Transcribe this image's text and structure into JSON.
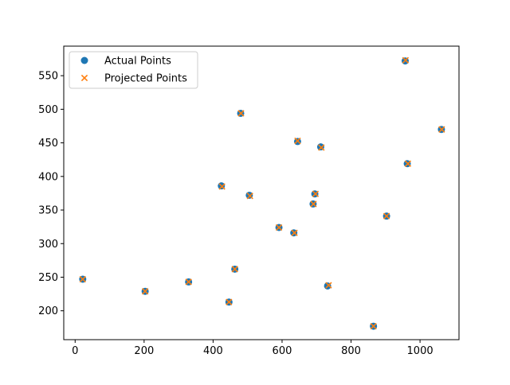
{
  "chart_data": {
    "type": "scatter",
    "title": "",
    "xlabel": "",
    "ylabel": "",
    "xlim": [
      -33,
      1113
    ],
    "ylim": [
      157,
      594
    ],
    "xticks": [
      0,
      200,
      400,
      600,
      800,
      1000
    ],
    "yticks": [
      200,
      250,
      300,
      350,
      400,
      450,
      500,
      550
    ],
    "grid": false,
    "legend_position": "top-left",
    "series": [
      {
        "name": "Actual Points",
        "marker": "circle",
        "color": "#1f77b4",
        "points": [
          [
            22,
            247
          ],
          [
            203,
            229
          ],
          [
            329,
            243
          ],
          [
            424,
            386
          ],
          [
            446,
            213
          ],
          [
            463,
            262
          ],
          [
            480,
            494
          ],
          [
            505,
            372
          ],
          [
            591,
            324
          ],
          [
            634,
            316
          ],
          [
            645,
            452
          ],
          [
            690,
            359
          ],
          [
            695,
            374
          ],
          [
            712,
            444
          ],
          [
            732,
            237
          ],
          [
            865,
            177
          ],
          [
            903,
            341
          ],
          [
            957,
            572
          ],
          [
            963,
            419
          ],
          [
            1062,
            470
          ]
        ]
      },
      {
        "name": "Projected Points",
        "marker": "x",
        "color": "#ff7f0e",
        "points": [
          [
            22,
            247
          ],
          [
            203,
            229
          ],
          [
            329,
            243
          ],
          [
            426,
            385
          ],
          [
            446,
            213
          ],
          [
            463,
            262
          ],
          [
            481,
            494
          ],
          [
            507,
            371
          ],
          [
            591,
            324
          ],
          [
            636,
            316
          ],
          [
            645,
            453
          ],
          [
            691,
            359
          ],
          [
            697,
            374
          ],
          [
            714,
            443
          ],
          [
            735,
            238
          ],
          [
            865,
            177
          ],
          [
            903,
            341
          ],
          [
            958,
            573
          ],
          [
            965,
            419
          ],
          [
            1063,
            470
          ]
        ]
      }
    ]
  }
}
